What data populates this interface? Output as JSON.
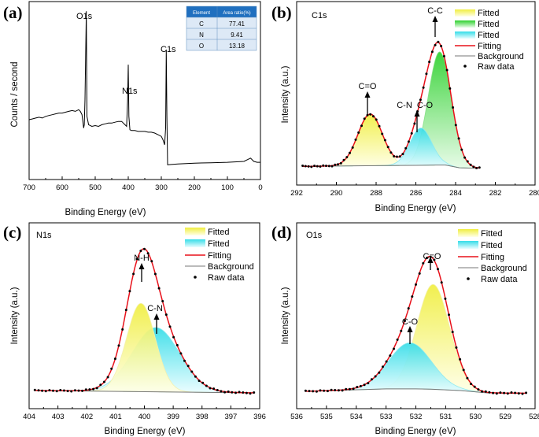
{
  "chart_data": [
    {
      "type": "line",
      "panel_label": "(a)",
      "xlabel": "Binding Energy (eV)",
      "ylabel": "Counts / second",
      "xlim": [
        700,
        0
      ],
      "ylim": [
        0,
        100
      ],
      "y_ticks_shown": false,
      "xticks": [
        700,
        600,
        500,
        400,
        300,
        200,
        100,
        0
      ],
      "series": [
        {
          "x": [
            700,
            690,
            680,
            670,
            660,
            650,
            640,
            630,
            620,
            610,
            600,
            590,
            580,
            570,
            560,
            550,
            545,
            540,
            535,
            533,
            531,
            529,
            527,
            525,
            520,
            510,
            500,
            490,
            480,
            470,
            460,
            450,
            440,
            430,
            420,
            410,
            405,
            402,
            400,
            398,
            395,
            390,
            380,
            370,
            360,
            350,
            340,
            330,
            320,
            310,
            300,
            295,
            290,
            287,
            285,
            283,
            281,
            280,
            270,
            250,
            200,
            150,
            100,
            50,
            30,
            20,
            10,
            0
          ],
          "y": [
            33,
            33.5,
            34,
            34.5,
            34,
            35,
            35.5,
            36,
            36.5,
            37,
            37,
            37.5,
            38,
            38.5,
            38,
            39,
            38,
            36,
            28,
            30,
            45,
            70,
            98,
            35,
            30,
            29,
            29.5,
            29,
            30,
            30.5,
            31,
            31,
            31.5,
            32,
            32,
            30,
            29,
            45,
            66,
            35,
            27,
            26.5,
            26.5,
            26,
            26,
            26,
            25.5,
            25.5,
            25,
            24,
            23,
            21,
            18,
            28,
            75,
            35,
            6,
            6,
            6.2,
            6.5,
            7,
            7.2,
            7.5,
            8,
            10,
            8,
            7.5,
            7.5
          ]
        }
      ],
      "annotations": [
        "O1s",
        "N1s",
        "C1s"
      ],
      "table": {
        "headers": [
          "Element",
          "Area ratio(%)"
        ],
        "rows": [
          [
            "C",
            "77.41"
          ],
          [
            "N",
            "9.41"
          ],
          [
            "O",
            "13.18"
          ]
        ]
      }
    },
    {
      "type": "area",
      "panel_label": "(b)",
      "title": "C1s",
      "xlabel": "Binding Energy (eV)",
      "ylabel": "Intensity (a.u.)",
      "xlim": [
        292,
        280
      ],
      "ylim": [
        0,
        100
      ],
      "xticks": [
        292,
        290,
        288,
        286,
        284,
        282,
        280
      ],
      "legend": [
        "Fitted",
        "Fitted",
        "Fitted",
        "Fitting",
        "Background",
        "Raw data"
      ],
      "legend_position": "top-right",
      "peaks": [
        {
          "name": "C=O",
          "center": 288.3,
          "height": 36,
          "sigma": 0.62,
          "color": "#e8e840"
        },
        {
          "name": "C-N C-O",
          "center": 285.75,
          "height": 26,
          "sigma": 0.55,
          "color": "#40e0e8"
        },
        {
          "name": "C-C",
          "center": 284.8,
          "height": 79,
          "sigma": 0.58,
          "color": "#33cc33"
        }
      ],
      "background": {
        "x": [
          291.7,
          288,
          286,
          285,
          284.5,
          283.8,
          283,
          282.8
        ],
        "y": [
          1.5,
          2,
          2.2,
          2.4,
          2.4,
          0.5,
          0.2,
          0.2
        ]
      },
      "annotations": [
        "C=O",
        "C-N",
        "C-O",
        "C-C"
      ]
    },
    {
      "type": "area",
      "panel_label": "(c)",
      "title": "N1s",
      "xlabel": "Binding Energy (eV)",
      "ylabel": "Intensity (a.u.)",
      "xlim": [
        404,
        396
      ],
      "ylim": [
        0,
        100
      ],
      "xticks": [
        404,
        403,
        402,
        401,
        400,
        399,
        398,
        397,
        396
      ],
      "legend": [
        "Fitted",
        "Fitted",
        "Fitting",
        "Background",
        "Raw data"
      ],
      "legend_position": "top-right",
      "peaks": [
        {
          "name": "N-H",
          "center": 400.12,
          "height": 55,
          "sigma": 0.5,
          "color": "#e8e840"
        },
        {
          "name": "C-N",
          "center": 399.6,
          "height": 40,
          "sigma": 0.82,
          "color": "#40e0e8"
        }
      ],
      "background": {
        "x": [
          403.8,
          396.2
        ],
        "y": [
          2,
          0.5
        ]
      },
      "annotations": [
        "N-H",
        "C-N"
      ]
    },
    {
      "type": "area",
      "panel_label": "(d)",
      "title": "O1s",
      "xlabel": "Binding Energy (eV)",
      "ylabel": "Intensity (a.u.)",
      "xlim": [
        536,
        528
      ],
      "ylim": [
        0,
        100
      ],
      "xticks": [
        536,
        535,
        534,
        533,
        532,
        531,
        530,
        529,
        528
      ],
      "legend": [
        "Fitted",
        "Fitted",
        "Fitting",
        "Background",
        "Raw data"
      ],
      "legend_position": "top-right",
      "peaks": [
        {
          "name": "C=O",
          "center": 531.42,
          "height": 66,
          "sigma": 0.55,
          "color": "#e8e840"
        },
        {
          "name": "C-O",
          "center": 532.2,
          "height": 29,
          "sigma": 0.72,
          "color": "#40e0e8"
        }
      ],
      "background": {
        "x": [
          535.7,
          533,
          532,
          531.5,
          530.5,
          529.6,
          528.3
        ],
        "y": [
          1.5,
          3,
          3,
          2.8,
          2,
          0.5,
          0.3
        ]
      },
      "annotations": [
        "C-O",
        "C=O"
      ]
    }
  ]
}
